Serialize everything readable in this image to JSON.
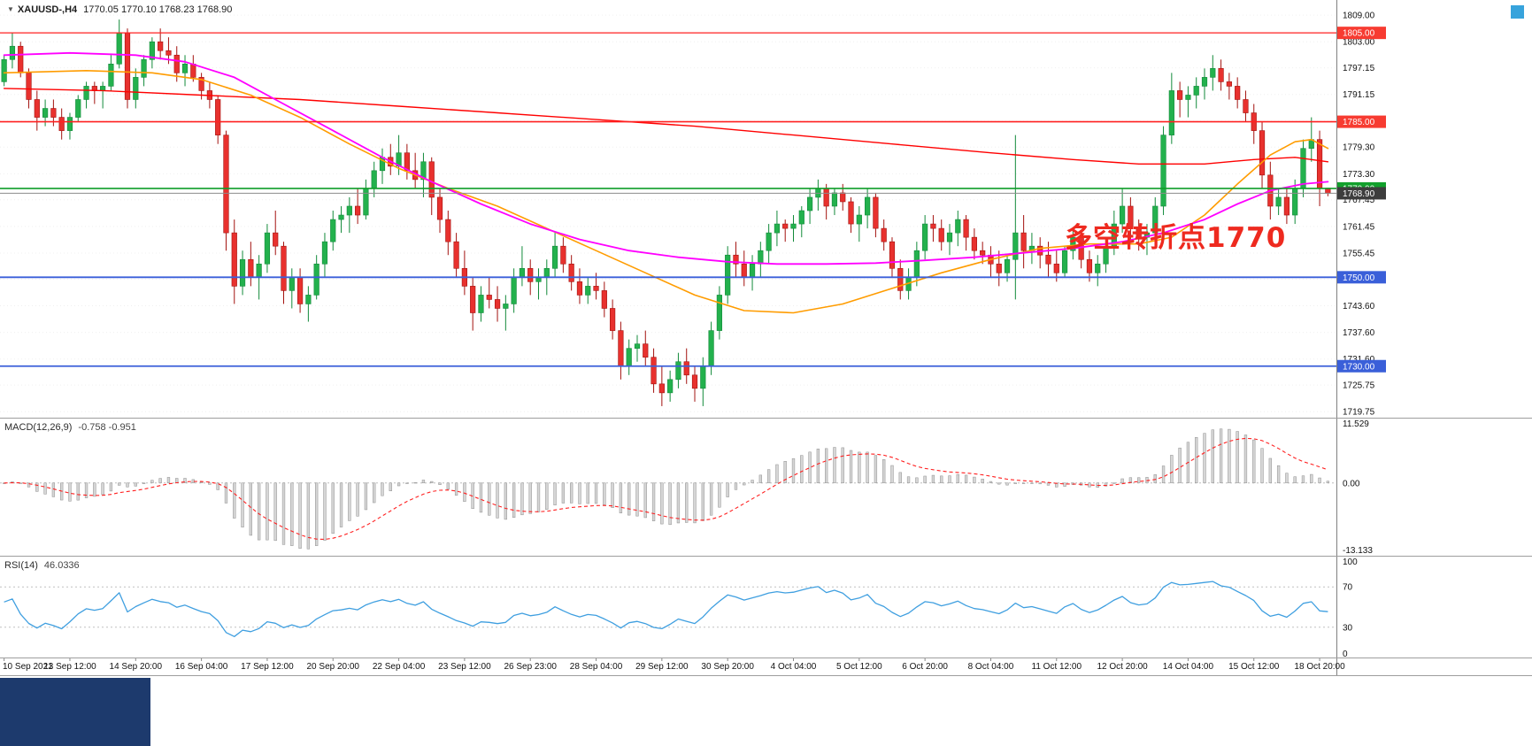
{
  "window": {
    "marker": "▼",
    "symbol": "XAUUSD-,H4",
    "ohlc": "1770.05 1770.10 1768.23 1768.90"
  },
  "annotation": {
    "text": "多空转折点1770",
    "color": "#ee2a1f"
  },
  "colors": {
    "bull": "#23b14d",
    "bull_edge": "#128a3a",
    "bear": "#e8312e",
    "bear_edge": "#a3120f",
    "ma_fast": "#ff00ff",
    "ma_mid": "#ff9c00",
    "ma_slow": "#ff0000",
    "rsi": "#3f9fe0",
    "macd_hist_fill": "#d6d6d6",
    "macd_hist_edge": "#8f8f8f",
    "macd_signal": "#ff2020",
    "corner_marker": "#37a3dc",
    "bottom_window": "#1d3a6d"
  },
  "chart_data": {
    "type": "candlestick",
    "symbol": "XAUUSD-",
    "timeframe": "H4",
    "ylim": [
      1718.4,
      1812.4
    ],
    "price_axis_labels": [
      "1809.00",
      "1803.00",
      "1797.15",
      "1791.15",
      "1785.15",
      "1779.30",
      "1773.30",
      "1767.45",
      "1761.45",
      "1755.45",
      "1749.60",
      "1743.60",
      "1737.60",
      "1731.60",
      "1725.75",
      "1719.75"
    ],
    "time_labels": [
      "10 Sep 2021",
      "13 Sep 12:00",
      "14 Sep 20:00",
      "16 Sep 04:00",
      "17 Sep 12:00",
      "20 Sep 20:00",
      "22 Sep 04:00",
      "23 Sep 12:00",
      "26 Sep 23:00",
      "28 Sep 04:00",
      "29 Sep 12:00",
      "30 Sep 20:00",
      "4 Oct 04:00",
      "5 Oct 12:00",
      "6 Oct 20:00",
      "8 Oct 04:00",
      "11 Oct 12:00",
      "12 Oct 20:00",
      "14 Oct 04:00",
      "15 Oct 12:00",
      "18 Oct 20:00"
    ],
    "bars_per_label": 8,
    "hlines": [
      {
        "price": 1805.0,
        "color": "#ff2020",
        "width": 1.2,
        "tag": "1805.00",
        "tag_bg": "#f73b31"
      },
      {
        "price": 1785.0,
        "color": "#ff2020",
        "width": 1.6,
        "tag": "1785.00",
        "tag_bg": "#f73b31"
      },
      {
        "price": 1770.0,
        "color": "#0f9d28",
        "width": 1.6,
        "tag": "1770.00",
        "tag_bg": "#12a02c"
      },
      {
        "price": 1768.9,
        "color": "#8c8c8c",
        "width": 1.0,
        "tag": "1768.90",
        "tag_bg": "#3d3d3d"
      },
      {
        "price": 1750.0,
        "color": "#3a5fd9",
        "width": 1.8,
        "tag": "1750.00",
        "tag_bg": "#3a5fd9"
      },
      {
        "price": 1730.0,
        "color": "#3a5fd9",
        "width": 1.8,
        "tag": "1730.00",
        "tag_bg": "#3a5fd9"
      }
    ],
    "candles": [
      [
        1794,
        1800,
        1793,
        1799
      ],
      [
        1799,
        1805,
        1797,
        1802
      ],
      [
        1802,
        1803,
        1795,
        1796
      ],
      [
        1796,
        1797,
        1788,
        1790
      ],
      [
        1790,
        1792,
        1783,
        1786
      ],
      [
        1786,
        1790,
        1784,
        1788
      ],
      [
        1788,
        1790,
        1784,
        1786
      ],
      [
        1786,
        1788,
        1781,
        1783
      ],
      [
        1783,
        1787,
        1781,
        1786
      ],
      [
        1786,
        1791,
        1785,
        1790
      ],
      [
        1790,
        1794,
        1788,
        1793
      ],
      [
        1793,
        1794,
        1789,
        1792
      ],
      [
        1792,
        1794,
        1788,
        1793
      ],
      [
        1793,
        1800,
        1792,
        1798
      ],
      [
        1798,
        1808,
        1797,
        1805
      ],
      [
        1805,
        1806,
        1788,
        1790
      ],
      [
        1790,
        1797,
        1788,
        1795
      ],
      [
        1795,
        1800,
        1793,
        1799
      ],
      [
        1799,
        1804,
        1797,
        1803
      ],
      [
        1803,
        1806,
        1799,
        1801
      ],
      [
        1801,
        1804,
        1798,
        1800
      ],
      [
        1800,
        1802,
        1794,
        1796
      ],
      [
        1796,
        1800,
        1793,
        1798
      ],
      [
        1798,
        1800,
        1794,
        1795
      ],
      [
        1795,
        1796,
        1790,
        1792
      ],
      [
        1792,
        1794,
        1788,
        1790
      ],
      [
        1790,
        1791,
        1780,
        1782
      ],
      [
        1782,
        1783,
        1756,
        1760
      ],
      [
        1760,
        1763,
        1744,
        1748
      ],
      [
        1748,
        1756,
        1746,
        1754
      ],
      [
        1754,
        1758,
        1748,
        1750
      ],
      [
        1750,
        1755,
        1745,
        1753
      ],
      [
        1753,
        1762,
        1751,
        1760
      ],
      [
        1760,
        1765,
        1755,
        1757
      ],
      [
        1757,
        1758,
        1744,
        1747
      ],
      [
        1747,
        1752,
        1743,
        1750
      ],
      [
        1750,
        1752,
        1742,
        1744
      ],
      [
        1744,
        1748,
        1740,
        1746
      ],
      [
        1746,
        1755,
        1745,
        1753
      ],
      [
        1753,
        1760,
        1750,
        1758
      ],
      [
        1758,
        1765,
        1756,
        1763
      ],
      [
        1763,
        1766,
        1760,
        1764
      ],
      [
        1764,
        1768,
        1760,
        1766
      ],
      [
        1766,
        1770,
        1762,
        1764
      ],
      [
        1764,
        1772,
        1763,
        1770
      ],
      [
        1770,
        1776,
        1768,
        1774
      ],
      [
        1774,
        1779,
        1771,
        1777
      ],
      [
        1777,
        1780,
        1773,
        1775
      ],
      [
        1775,
        1782,
        1773,
        1778
      ],
      [
        1778,
        1780,
        1772,
        1774
      ],
      [
        1774,
        1778,
        1770,
        1772
      ],
      [
        1772,
        1778,
        1768,
        1776
      ],
      [
        1776,
        1777,
        1764,
        1768
      ],
      [
        1768,
        1770,
        1760,
        1763
      ],
      [
        1763,
        1765,
        1755,
        1758
      ],
      [
        1758,
        1760,
        1750,
        1752
      ],
      [
        1752,
        1756,
        1746,
        1748
      ],
      [
        1748,
        1750,
        1738,
        1742
      ],
      [
        1742,
        1748,
        1740,
        1746
      ],
      [
        1746,
        1750,
        1743,
        1745
      ],
      [
        1745,
        1748,
        1740,
        1743
      ],
      [
        1743,
        1746,
        1738,
        1744
      ],
      [
        1744,
        1752,
        1742,
        1750
      ],
      [
        1750,
        1757,
        1748,
        1752
      ],
      [
        1752,
        1754,
        1746,
        1749
      ],
      [
        1749,
        1752,
        1745,
        1750
      ],
      [
        1750,
        1754,
        1746,
        1752
      ],
      [
        1752,
        1760,
        1750,
        1757
      ],
      [
        1757,
        1759,
        1751,
        1753
      ],
      [
        1753,
        1755,
        1747,
        1749
      ],
      [
        1749,
        1752,
        1744,
        1746
      ],
      [
        1746,
        1750,
        1744,
        1748
      ],
      [
        1748,
        1751,
        1745,
        1747
      ],
      [
        1747,
        1749,
        1741,
        1743
      ],
      [
        1743,
        1745,
        1736,
        1738
      ],
      [
        1738,
        1740,
        1727,
        1730
      ],
      [
        1730,
        1736,
        1728,
        1734
      ],
      [
        1734,
        1737,
        1731,
        1735
      ],
      [
        1735,
        1738,
        1730,
        1732
      ],
      [
        1732,
        1734,
        1724,
        1726
      ],
      [
        1726,
        1730,
        1721,
        1724
      ],
      [
        1724,
        1729,
        1722,
        1727
      ],
      [
        1727,
        1733,
        1725,
        1731
      ],
      [
        1731,
        1734,
        1726,
        1728
      ],
      [
        1728,
        1730,
        1722,
        1725
      ],
      [
        1725,
        1732,
        1721,
        1730
      ],
      [
        1730,
        1740,
        1728,
        1738
      ],
      [
        1738,
        1748,
        1736,
        1746
      ],
      [
        1746,
        1757,
        1744,
        1755
      ],
      [
        1755,
        1758,
        1750,
        1753
      ],
      [
        1753,
        1756,
        1748,
        1750
      ],
      [
        1750,
        1755,
        1747,
        1753
      ],
      [
        1753,
        1758,
        1750,
        1756
      ],
      [
        1756,
        1762,
        1753,
        1760
      ],
      [
        1760,
        1765,
        1757,
        1762
      ],
      [
        1762,
        1763,
        1758,
        1761
      ],
      [
        1761,
        1764,
        1758,
        1762
      ],
      [
        1762,
        1766,
        1759,
        1765
      ],
      [
        1765,
        1770,
        1762,
        1768
      ],
      [
        1768,
        1772,
        1765,
        1770
      ],
      [
        1770,
        1771,
        1763,
        1766
      ],
      [
        1766,
        1770,
        1764,
        1769
      ],
      [
        1769,
        1771,
        1765,
        1767
      ],
      [
        1767,
        1768,
        1760,
        1762
      ],
      [
        1762,
        1766,
        1758,
        1764
      ],
      [
        1764,
        1770,
        1761,
        1768
      ],
      [
        1768,
        1769,
        1759,
        1761
      ],
      [
        1761,
        1763,
        1756,
        1758
      ],
      [
        1758,
        1759,
        1750,
        1752
      ],
      [
        1752,
        1754,
        1745,
        1747
      ],
      [
        1747,
        1752,
        1745,
        1750
      ],
      [
        1750,
        1758,
        1748,
        1756
      ],
      [
        1756,
        1764,
        1754,
        1762
      ],
      [
        1762,
        1764,
        1758,
        1761
      ],
      [
        1761,
        1763,
        1756,
        1758
      ],
      [
        1758,
        1762,
        1755,
        1760
      ],
      [
        1760,
        1765,
        1757,
        1763
      ],
      [
        1763,
        1764,
        1756,
        1759
      ],
      [
        1759,
        1761,
        1754,
        1756
      ],
      [
        1756,
        1758,
        1753,
        1755
      ],
      [
        1755,
        1757,
        1750,
        1753
      ],
      [
        1753,
        1756,
        1748,
        1751
      ],
      [
        1751,
        1755,
        1749,
        1754
      ],
      [
        1754,
        1782,
        1745,
        1760
      ],
      [
        1760,
        1764,
        1752,
        1756
      ],
      [
        1756,
        1760,
        1753,
        1757
      ],
      [
        1757,
        1759,
        1752,
        1755
      ],
      [
        1755,
        1758,
        1750,
        1753
      ],
      [
        1753,
        1756,
        1749,
        1751
      ],
      [
        1751,
        1757,
        1750,
        1756
      ],
      [
        1756,
        1761,
        1754,
        1759
      ],
      [
        1759,
        1760,
        1752,
        1754
      ],
      [
        1754,
        1756,
        1749,
        1751
      ],
      [
        1751,
        1755,
        1748,
        1753
      ],
      [
        1753,
        1759,
        1751,
        1757
      ],
      [
        1757,
        1765,
        1755,
        1762
      ],
      [
        1762,
        1770,
        1760,
        1766
      ],
      [
        1766,
        1768,
        1758,
        1761
      ],
      [
        1761,
        1763,
        1756,
        1759
      ],
      [
        1759,
        1762,
        1755,
        1760
      ],
      [
        1760,
        1768,
        1758,
        1766
      ],
      [
        1766,
        1784,
        1764,
        1782
      ],
      [
        1782,
        1796,
        1780,
        1792
      ],
      [
        1792,
        1794,
        1786,
        1790
      ],
      [
        1790,
        1793,
        1786,
        1791
      ],
      [
        1791,
        1795,
        1788,
        1793
      ],
      [
        1793,
        1797,
        1790,
        1795
      ],
      [
        1795,
        1800,
        1792,
        1797
      ],
      [
        1797,
        1799,
        1792,
        1794
      ],
      [
        1794,
        1796,
        1790,
        1793
      ],
      [
        1793,
        1795,
        1788,
        1790
      ],
      [
        1790,
        1792,
        1785,
        1787
      ],
      [
        1787,
        1789,
        1780,
        1783
      ],
      [
        1783,
        1785,
        1770,
        1773
      ],
      [
        1773,
        1776,
        1763,
        1766
      ],
      [
        1766,
        1770,
        1764,
        1768
      ],
      [
        1768,
        1770,
        1762,
        1764
      ],
      [
        1764,
        1772,
        1762,
        1770
      ],
      [
        1770,
        1781,
        1768,
        1779
      ],
      [
        1779,
        1786,
        1776,
        1781
      ],
      [
        1781,
        1783,
        1766,
        1770
      ],
      [
        1770.05,
        1770.1,
        1768.23,
        1768.9
      ]
    ],
    "overlays": {
      "ma_magenta": {
        "name": "ma-fast-magenta",
        "points": [
          [
            0,
            1800
          ],
          [
            8,
            1800.5
          ],
          [
            16,
            1800
          ],
          [
            22,
            1798.5
          ],
          [
            28,
            1795
          ],
          [
            34,
            1789
          ],
          [
            40,
            1783
          ],
          [
            46,
            1777
          ],
          [
            52,
            1771.5
          ],
          [
            58,
            1766.5
          ],
          [
            64,
            1762
          ],
          [
            70,
            1758.5
          ],
          [
            76,
            1756
          ],
          [
            82,
            1754.5
          ],
          [
            88,
            1753.5
          ],
          [
            94,
            1753
          ],
          [
            100,
            1753
          ],
          [
            106,
            1753.2
          ],
          [
            112,
            1753.8
          ],
          [
            118,
            1754.5
          ],
          [
            124,
            1755.5
          ],
          [
            130,
            1756.5
          ],
          [
            136,
            1758
          ],
          [
            141,
            1760
          ],
          [
            146,
            1763
          ],
          [
            150,
            1766.5
          ],
          [
            154,
            1769.5
          ],
          [
            158,
            1771
          ],
          [
            161,
            1771.5
          ]
        ]
      },
      "ma_orange": {
        "name": "ma-medium-orange",
        "points": [
          [
            0,
            1796
          ],
          [
            10,
            1796.5
          ],
          [
            18,
            1796
          ],
          [
            24,
            1794.5
          ],
          [
            30,
            1791
          ],
          [
            36,
            1786
          ],
          [
            42,
            1780
          ],
          [
            48,
            1774.5
          ],
          [
            54,
            1770
          ],
          [
            60,
            1766
          ],
          [
            66,
            1761
          ],
          [
            72,
            1756
          ],
          [
            78,
            1751
          ],
          [
            84,
            1746
          ],
          [
            90,
            1742.5
          ],
          [
            96,
            1742
          ],
          [
            102,
            1744
          ],
          [
            108,
            1747.5
          ],
          [
            114,
            1751
          ],
          [
            120,
            1754
          ],
          [
            126,
            1756.5
          ],
          [
            132,
            1757.5
          ],
          [
            138,
            1757.5
          ],
          [
            142,
            1759
          ],
          [
            146,
            1764
          ],
          [
            150,
            1771
          ],
          [
            154,
            1777.5
          ],
          [
            157,
            1780.5
          ],
          [
            159,
            1781
          ],
          [
            161,
            1779
          ]
        ]
      },
      "ma_red": {
        "name": "ma-slow-red",
        "points": [
          [
            0,
            1792.5
          ],
          [
            12,
            1792
          ],
          [
            24,
            1791
          ],
          [
            36,
            1790
          ],
          [
            48,
            1788.5
          ],
          [
            60,
            1787
          ],
          [
            72,
            1785.5
          ],
          [
            84,
            1784
          ],
          [
            96,
            1782
          ],
          [
            108,
            1780
          ],
          [
            120,
            1778
          ],
          [
            130,
            1776.5
          ],
          [
            138,
            1775.5
          ],
          [
            146,
            1775.5
          ],
          [
            152,
            1776.5
          ],
          [
            157,
            1777
          ],
          [
            161,
            1776
          ]
        ]
      }
    },
    "indicators": {
      "macd": {
        "label": "MACD(12,26,9)",
        "values_text": "-0.758 -0.951",
        "params": [
          12,
          26,
          9
        ],
        "axis": [
          11.529,
          0,
          -13.133
        ],
        "axis_labels": [
          "11.529",
          "0.00",
          "-13.133"
        ]
      },
      "rsi": {
        "label": "RSI(14)",
        "value_text": "46.0336",
        "period": 14,
        "levels": [
          70,
          30
        ],
        "axis_labels": [
          "100",
          "70",
          "30",
          "0"
        ]
      }
    }
  }
}
